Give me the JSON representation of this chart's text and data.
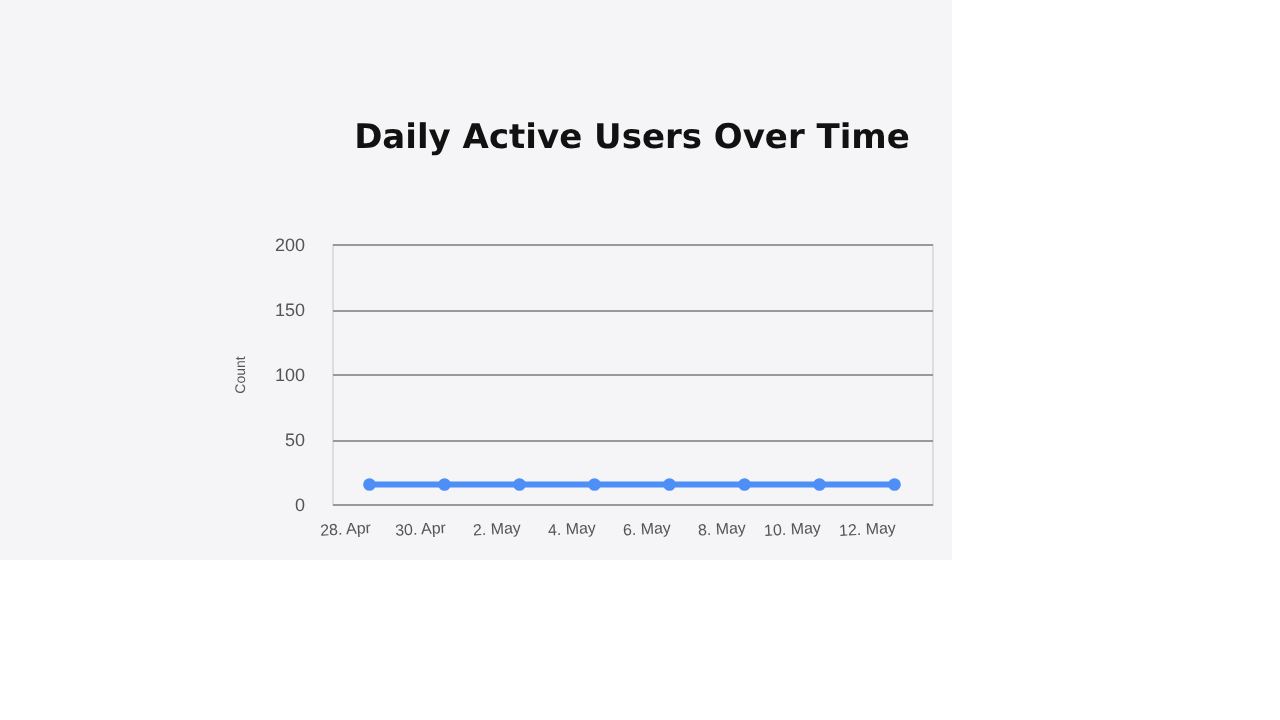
{
  "chart_data": {
    "type": "line",
    "title": "Daily Active Users Over Time",
    "ylabel": "Count",
    "categories": [
      "28. Apr",
      "30. Apr",
      "2. May",
      "4. May",
      "6. May",
      "8. May",
      "10. May",
      "12. May"
    ],
    "series": [
      {
        "color": "#4d8ef7",
        "values": [
          15,
          15,
          15,
          15,
          15,
          15,
          15,
          15
        ]
      }
    ],
    "ylim": [
      0,
      200
    ],
    "yticks": [
      0,
      50,
      100,
      150,
      200
    ],
    "grid": "y",
    "marker": "circle",
    "line_style": "solid",
    "legend": false
  }
}
